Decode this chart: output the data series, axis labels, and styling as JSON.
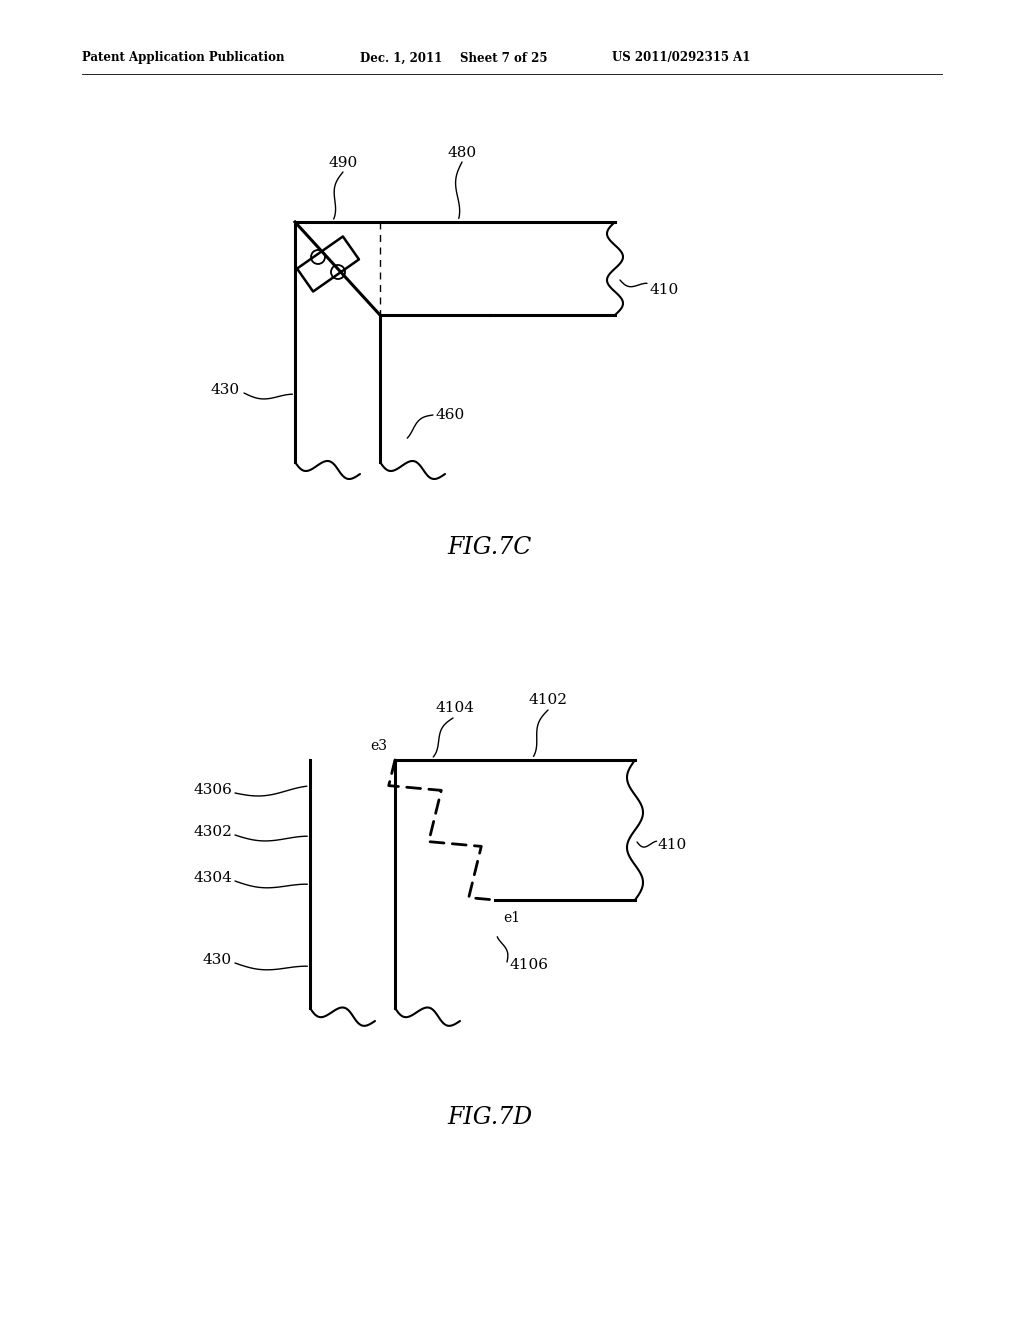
{
  "bg_color": "#ffffff",
  "header_text": "Patent Application Publication",
  "header_date": "Dec. 1, 2011",
  "header_sheet": "Sheet 7 of 25",
  "header_patent": "US 2011/0292315 A1",
  "fig7c_label": "FIG.7C",
  "fig7d_label": "FIG.7D",
  "lc": "#000000",
  "lw_thin": 1.0,
  "lw_med": 1.5,
  "lw_thick": 2.2
}
